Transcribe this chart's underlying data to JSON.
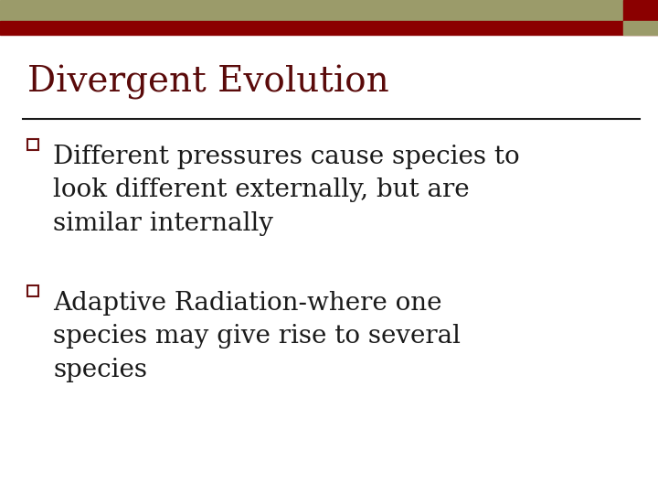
{
  "title": "Divergent Evolution",
  "title_color": "#5a0a0a",
  "title_fontsize": 28,
  "background_color": "#ffffff",
  "header_bar1_color": "#9b9b6a",
  "header_bar2_color": "#8b0000",
  "separator_line_color": "#1a1a1a",
  "bullet_color": "#6b1010",
  "text_color": "#1a1a1a",
  "bullet_points": [
    "Different pressures cause species to\nlook different externally, but are\nsimilar internally",
    "Adaptive Radiation-where one\nspecies may give rise to several\nspecies"
  ],
  "bullet_fontsize": 20,
  "corner_square_color": "#8b0000",
  "corner_square2_color": "#9b9b6a",
  "fig_width": 7.2,
  "fig_height": 5.4,
  "dpi": 100
}
